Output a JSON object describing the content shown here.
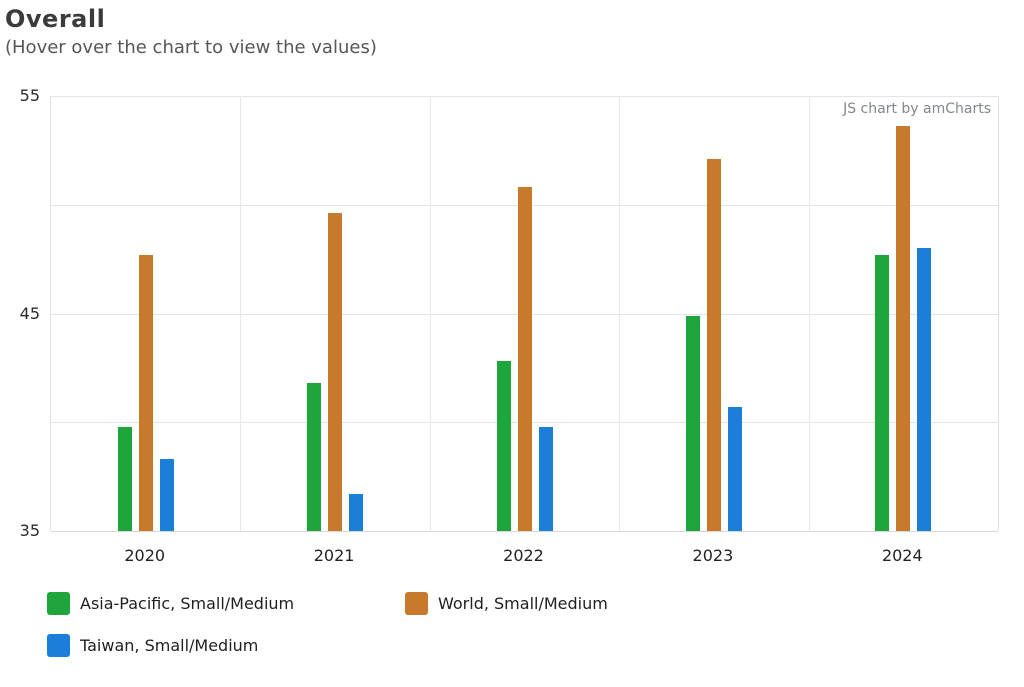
{
  "chart_data": {
    "type": "bar",
    "title": "Overall",
    "subtitle": "(Hover over the chart to view the values)",
    "watermark": "JS chart by amCharts",
    "categories": [
      "2020",
      "2021",
      "2022",
      "2023",
      "2024"
    ],
    "series": [
      {
        "name": "Asia-Pacific, Small/Medium",
        "color": "#1ea63c",
        "values": [
          39.8,
          41.8,
          42.8,
          44.9,
          47.7
        ]
      },
      {
        "name": "World, Small/Medium",
        "color": "#c7792c",
        "values": [
          47.7,
          49.6,
          50.8,
          52.1,
          53.6
        ]
      },
      {
        "name": "Taiwan, Small/Medium",
        "color": "#1b7ed8",
        "values": [
          38.3,
          36.7,
          39.8,
          40.7,
          48.0
        ]
      }
    ],
    "ylim": [
      35,
      55
    ],
    "yticks_labeled": [
      55,
      45,
      35
    ],
    "yticks_grid": [
      55,
      50,
      45,
      40,
      35
    ],
    "grid": true,
    "legend_position": "bottom"
  }
}
